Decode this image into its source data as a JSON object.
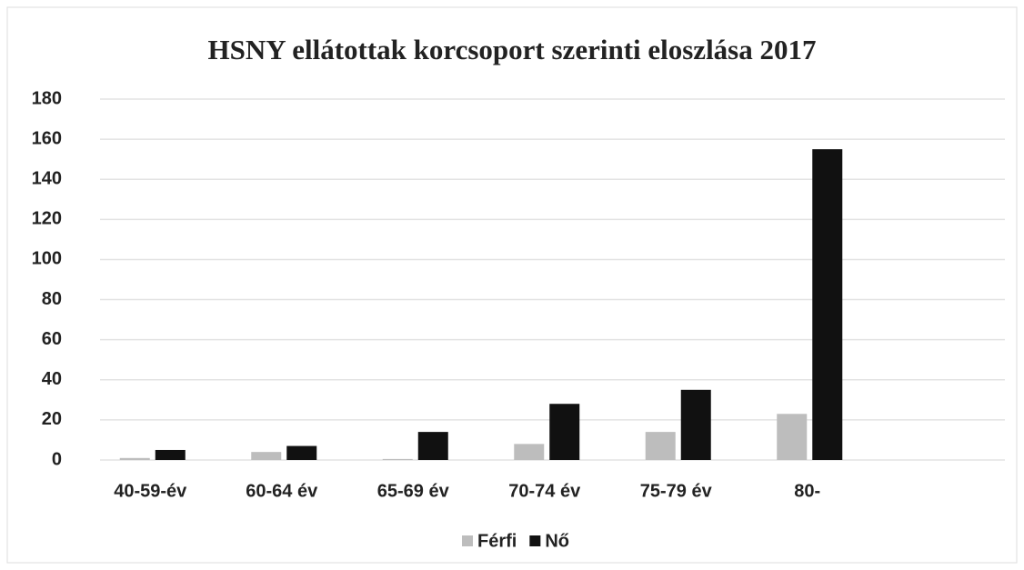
{
  "chart_data": {
    "type": "bar",
    "title": "HSNY ellátottak korcsoport szerinti eloszlása 2017",
    "categories": [
      "40-59-év",
      "60-64 év",
      "65-69 év",
      "70-74 év",
      "75-79 év",
      "80-"
    ],
    "series": [
      {
        "name": "Férfi",
        "color": "#bdbdbd",
        "values": [
          1,
          4,
          0.5,
          8,
          14,
          23
        ]
      },
      {
        "name": "Nő",
        "color": "#111111",
        "values": [
          5,
          7,
          14,
          28,
          35,
          155
        ]
      }
    ],
    "ylim": [
      0,
      180
    ],
    "yticks": [
      0,
      20,
      40,
      60,
      80,
      100,
      120,
      140,
      160,
      180
    ],
    "grid": true,
    "legend": "bottom"
  }
}
